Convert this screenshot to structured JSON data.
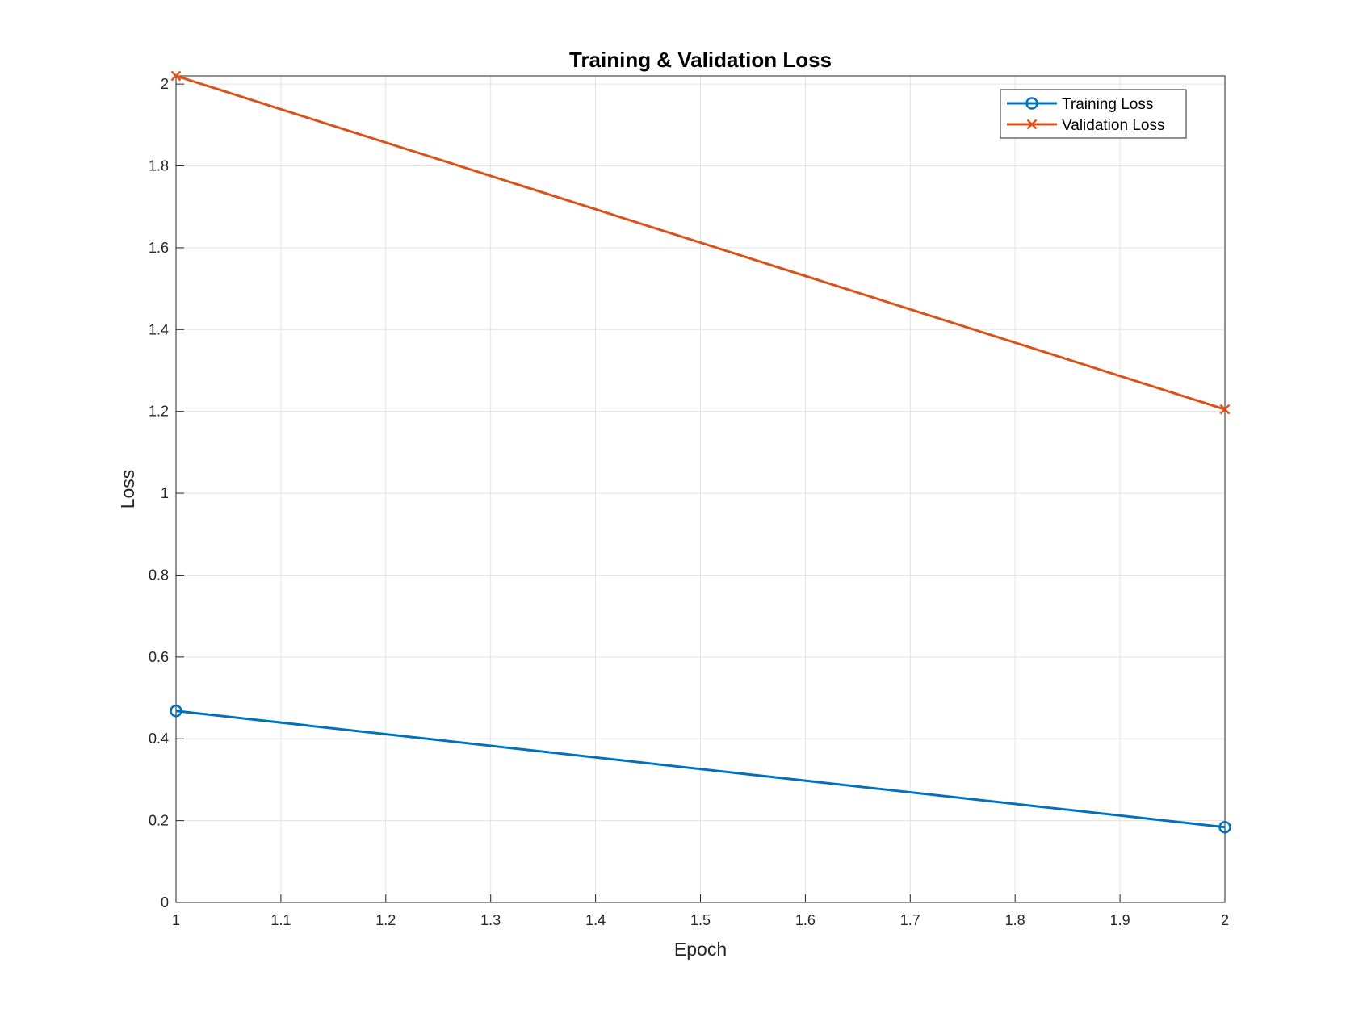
{
  "chart_data": {
    "type": "line",
    "title": "Training & Validation Loss",
    "xlabel": "Epoch",
    "ylabel": "Loss",
    "xlim": [
      1,
      2
    ],
    "ylim": [
      0,
      2.02
    ],
    "xticks": [
      1,
      1.1,
      1.2,
      1.3,
      1.4,
      1.5,
      1.6,
      1.7,
      1.8,
      1.9,
      2
    ],
    "xtick_labels": [
      "1",
      "1.1",
      "1.2",
      "1.3",
      "1.4",
      "1.5",
      "1.6",
      "1.7",
      "1.8",
      "1.9",
      "2"
    ],
    "yticks": [
      0,
      0.2,
      0.4,
      0.6,
      0.8,
      1,
      1.2,
      1.4,
      1.6,
      1.8,
      2
    ],
    "ytick_labels": [
      "0",
      "0.2",
      "0.4",
      "0.6",
      "0.8",
      "1",
      "1.2",
      "1.4",
      "1.6",
      "1.8",
      "2"
    ],
    "grid": true,
    "legend_position": "top-right",
    "x": [
      1,
      2
    ],
    "series": [
      {
        "name": "Training Loss",
        "values": [
          0.468,
          0.184
        ],
        "color": "#0072BD",
        "marker": "circle"
      },
      {
        "name": "Validation Loss",
        "values": [
          2.02,
          1.205
        ],
        "color": "#D95319",
        "marker": "x"
      }
    ]
  }
}
